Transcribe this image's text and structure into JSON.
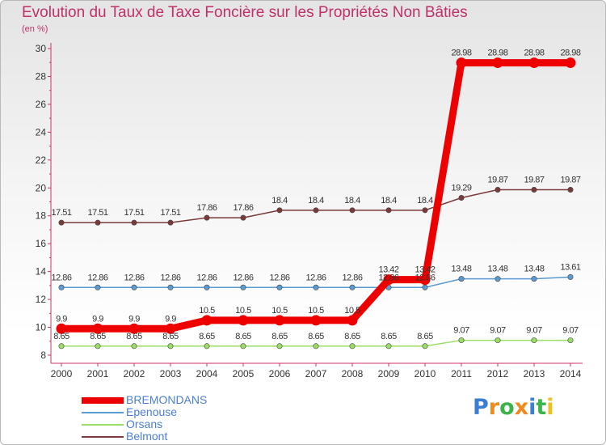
{
  "chart_data": {
    "type": "line",
    "title": "Evolution du Taux de Taxe Foncière sur les Propriétés Non Bâties",
    "subtitle": "(en %)",
    "xlabel": "",
    "ylabel": "",
    "categories": [
      "2000",
      "2001",
      "2002",
      "2003",
      "2004",
      "2005",
      "2006",
      "2007",
      "2008",
      "2009",
      "2010",
      "2011",
      "2012",
      "2013",
      "2014"
    ],
    "ylim": [
      8,
      30
    ],
    "yticks": [
      8,
      10,
      12,
      14,
      16,
      18,
      20,
      22,
      24,
      26,
      28,
      30
    ],
    "grid": false,
    "legend_position": "bottom-left",
    "series": [
      {
        "name": "BREMONDANS",
        "color": "#ee0000",
        "values": [
          9.9,
          9.9,
          9.9,
          9.9,
          10.5,
          10.5,
          10.5,
          10.5,
          10.5,
          13.42,
          13.42,
          28.98,
          28.98,
          28.98,
          28.98
        ],
        "labels": [
          "9.9",
          "9.9",
          "9.9",
          "9.9",
          "10.5",
          "10.5",
          "10.5",
          "10.5",
          "10.5",
          "13.42",
          "13.42",
          "28.98",
          "28.98",
          "28.98",
          "28.98"
        ]
      },
      {
        "name": "Epenouse",
        "color": "#5b9bd0",
        "values": [
          12.86,
          12.86,
          12.86,
          12.86,
          12.86,
          12.86,
          12.86,
          12.86,
          12.86,
          12.86,
          12.86,
          13.48,
          13.48,
          13.48,
          13.61
        ],
        "labels": [
          "12.86",
          "12.86",
          "12.86",
          "12.86",
          "12.86",
          "12.86",
          "12.86",
          "12.86",
          "12.86",
          "12.86",
          "12.86",
          "13.48",
          "13.48",
          "13.48",
          "13.61"
        ]
      },
      {
        "name": "Orsans",
        "color": "#99dd66",
        "values": [
          8.65,
          8.65,
          8.65,
          8.65,
          8.65,
          8.65,
          8.65,
          8.65,
          8.65,
          8.65,
          8.65,
          9.07,
          9.07,
          9.07,
          9.07
        ],
        "labels": [
          "8.65",
          "8.65",
          "8.65",
          "8.65",
          "8.65",
          "8.65",
          "8.65",
          "8.65",
          "8.65",
          "8.65",
          "8.65",
          "9.07",
          "9.07",
          "9.07",
          "9.07"
        ]
      },
      {
        "name": "Belmont",
        "color": "#7a3a3a",
        "values": [
          17.51,
          17.51,
          17.51,
          17.51,
          17.86,
          17.86,
          18.4,
          18.4,
          18.4,
          18.4,
          18.4,
          19.29,
          19.87,
          19.87,
          19.87
        ],
        "labels": [
          "17.51",
          "17.51",
          "17.51",
          "17.51",
          "17.86",
          "17.86",
          "18.4",
          "18.4",
          "18.4",
          "18.4",
          "18.4",
          "19.29",
          "19.87",
          "19.87",
          "19.87"
        ]
      }
    ]
  },
  "legend": {
    "items": [
      {
        "label": "BREMONDANS",
        "color": "#ee0000"
      },
      {
        "label": "Epenouse",
        "color": "#5b9bd0"
      },
      {
        "label": "Orsans",
        "color": "#99dd66"
      },
      {
        "label": "Belmont",
        "color": "#7a3a3a"
      }
    ]
  },
  "logo": {
    "letters": [
      "P",
      "r",
      "o",
      "x",
      "i",
      "t",
      "i"
    ],
    "colors": [
      "#3b7fd4",
      "#f08a1c",
      "#3bb44a",
      "#f08a1c",
      "#3b7fd4",
      "#3bb44a",
      "#f2c01e"
    ]
  }
}
